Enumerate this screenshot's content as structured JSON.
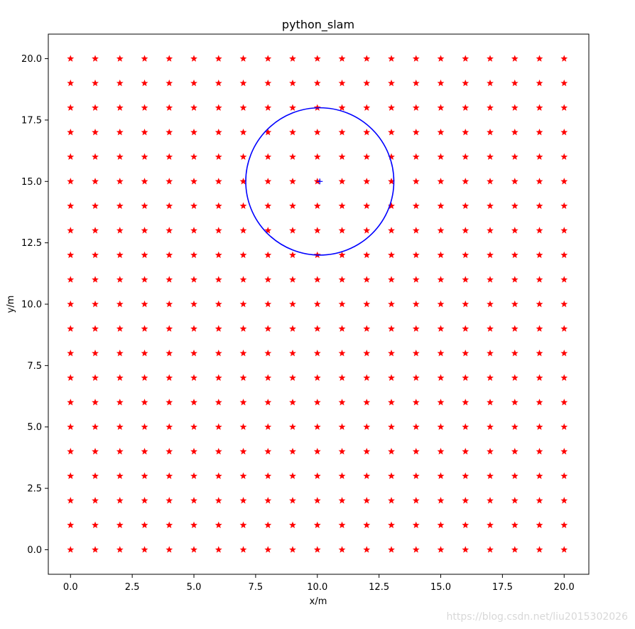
{
  "chart_data": {
    "type": "scatter",
    "title": "python_slam",
    "xlabel": "x/m",
    "ylabel": "y/m",
    "xlim": [
      -0.9,
      21.0
    ],
    "ylim": [
      -1.0,
      21.0
    ],
    "xticks": [
      0.0,
      2.5,
      5.0,
      7.5,
      10.0,
      12.5,
      15.0,
      17.5,
      20.0
    ],
    "xtick_labels": [
      "0.0",
      "2.5",
      "5.0",
      "7.5",
      "10.0",
      "12.5",
      "15.0",
      "17.5",
      "20.0"
    ],
    "yticks": [
      0.0,
      2.5,
      5.0,
      7.5,
      10.0,
      12.5,
      15.0,
      17.5,
      20.0
    ],
    "ytick_labels": [
      "0.0",
      "2.5",
      "5.0",
      "7.5",
      "10.0",
      "12.5",
      "15.0",
      "17.5",
      "20.0"
    ],
    "grid": false,
    "landmarks": {
      "marker": "star",
      "color": "#ff0000",
      "grid_x": {
        "start": 0,
        "stop": 20,
        "step": 1
      },
      "grid_y": {
        "start": 0,
        "stop": 20,
        "step": 1
      }
    },
    "robot": {
      "marker": "plus",
      "color": "#0000ff",
      "x": 10.1,
      "y": 15.0
    },
    "sensor_range_circle": {
      "color": "#0000ff",
      "center_x": 10.1,
      "center_y": 15.0,
      "radius": 3.0
    }
  },
  "watermark": "https://blog.csdn.net/liu2015302026"
}
